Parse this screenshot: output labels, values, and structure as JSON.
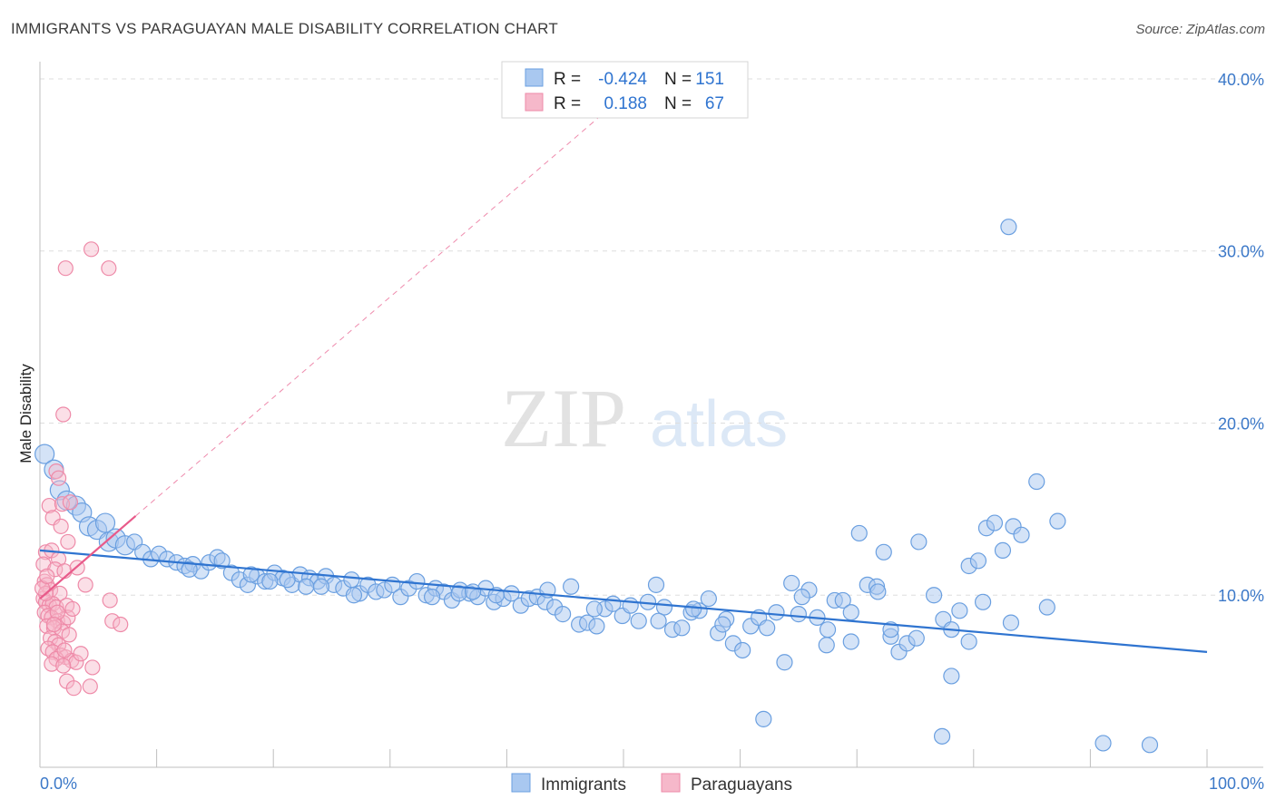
{
  "title": "IMMIGRANTS VS PARAGUAYAN MALE DISABILITY CORRELATION CHART",
  "source": "Source: ZipAtlas.com",
  "watermark": {
    "zip": "ZIP",
    "atlas": "atlas"
  },
  "colors": {
    "immigrants_fill": "#a9c8f0",
    "immigrants_stroke": "#6a9fe0",
    "immigrants_line": "#2f74d0",
    "paraguayans_fill": "#f6b8ca",
    "paraguayans_stroke": "#ee8aa8",
    "paraguayans_line": "#e85a8a",
    "axis_text": "#3b78c8",
    "grid": "#dedede"
  },
  "legend": {
    "rows": [
      {
        "r_label": "R =",
        "r_value": "-0.424",
        "n_label": "N =",
        "n_value": "151"
      },
      {
        "r_label": "R =",
        "r_value": "0.188",
        "n_label": "N =",
        "n_value": "67"
      }
    ]
  },
  "chart_data": {
    "type": "scatter",
    "title": "IMMIGRANTS VS PARAGUAYAN MALE DISABILITY CORRELATION CHART",
    "xlabel": "",
    "ylabel": "Male Disability",
    "xlim": [
      0,
      100
    ],
    "ylim": [
      0,
      41
    ],
    "x_tick_labels": [
      "0.0%",
      "100.0%"
    ],
    "y_ticks": [
      10,
      20,
      30,
      40
    ],
    "y_tick_labels": [
      "10.0%",
      "20.0%",
      "30.0%",
      "40.0%"
    ],
    "grid": true,
    "legend_position": "bottom",
    "series": [
      {
        "name": "Immigrants",
        "stats": {
          "R": -0.424,
          "N": 151
        },
        "trend": {
          "x0": 0,
          "y0": 12.6,
          "x1": 100,
          "y1": 6.7
        },
        "points": [
          [
            0.4,
            18.2
          ],
          [
            1.2,
            17.3
          ],
          [
            1.7,
            16.1
          ],
          [
            2.3,
            15.5
          ],
          [
            3.1,
            15.2
          ],
          [
            3.6,
            14.8
          ],
          [
            4.2,
            14.0
          ],
          [
            4.9,
            13.8
          ],
          [
            5.6,
            14.2
          ],
          [
            5.9,
            13.1
          ],
          [
            6.5,
            13.3
          ],
          [
            7.3,
            12.9
          ],
          [
            8.1,
            13.1
          ],
          [
            8.8,
            12.5
          ],
          [
            9.5,
            12.1
          ],
          [
            10.2,
            12.4
          ],
          [
            10.9,
            12.1
          ],
          [
            11.7,
            11.9
          ],
          [
            12.4,
            11.7
          ],
          [
            13.1,
            11.8
          ],
          [
            13.8,
            11.4
          ],
          [
            14.5,
            11.9
          ],
          [
            15.2,
            12.2
          ],
          [
            15.6,
            12.0
          ],
          [
            16.4,
            11.3
          ],
          [
            17.1,
            10.9
          ],
          [
            17.8,
            10.6
          ],
          [
            18.6,
            11.1
          ],
          [
            19.3,
            10.8
          ],
          [
            20.1,
            11.3
          ],
          [
            20.8,
            11.0
          ],
          [
            21.6,
            10.6
          ],
          [
            22.3,
            11.2
          ],
          [
            23.1,
            11.0
          ],
          [
            23.8,
            10.8
          ],
          [
            24.5,
            11.1
          ],
          [
            25.2,
            10.6
          ],
          [
            26.0,
            10.4
          ],
          [
            26.7,
            10.9
          ],
          [
            27.4,
            10.1
          ],
          [
            28.1,
            10.6
          ],
          [
            28.8,
            10.2
          ],
          [
            29.5,
            10.3
          ],
          [
            30.2,
            10.6
          ],
          [
            30.9,
            9.9
          ],
          [
            31.6,
            10.4
          ],
          [
            32.3,
            10.8
          ],
          [
            33.1,
            10.0
          ],
          [
            33.9,
            10.4
          ],
          [
            34.6,
            10.2
          ],
          [
            35.3,
            9.7
          ],
          [
            36.0,
            10.3
          ],
          [
            36.8,
            10.1
          ],
          [
            37.5,
            9.9
          ],
          [
            38.2,
            10.4
          ],
          [
            38.9,
            9.6
          ],
          [
            39.7,
            9.8
          ],
          [
            40.4,
            10.1
          ],
          [
            41.2,
            9.4
          ],
          [
            41.9,
            9.8
          ],
          [
            42.6,
            9.9
          ],
          [
            43.3,
            9.6
          ],
          [
            44.1,
            9.3
          ],
          [
            44.8,
            8.9
          ],
          [
            45.5,
            10.5
          ],
          [
            46.2,
            8.3
          ],
          [
            46.9,
            8.4
          ],
          [
            47.7,
            8.2
          ],
          [
            48.4,
            9.2
          ],
          [
            49.1,
            9.5
          ],
          [
            49.9,
            8.8
          ],
          [
            50.6,
            9.4
          ],
          [
            51.3,
            8.5
          ],
          [
            52.1,
            9.6
          ],
          [
            52.8,
            10.6
          ],
          [
            53.5,
            9.3
          ],
          [
            54.2,
            8.0
          ],
          [
            55.0,
            8.1
          ],
          [
            55.8,
            9.0
          ],
          [
            56.5,
            9.1
          ],
          [
            57.3,
            9.8
          ],
          [
            58.1,
            7.8
          ],
          [
            58.8,
            8.6
          ],
          [
            59.4,
            7.2
          ],
          [
            60.2,
            6.8
          ],
          [
            60.9,
            8.2
          ],
          [
            61.6,
            8.7
          ],
          [
            62.3,
            8.1
          ],
          [
            63.1,
            9.0
          ],
          [
            63.8,
            6.1
          ],
          [
            64.4,
            10.7
          ],
          [
            65.0,
            8.9
          ],
          [
            65.9,
            10.3
          ],
          [
            66.6,
            8.7
          ],
          [
            67.4,
            7.1
          ],
          [
            68.1,
            9.7
          ],
          [
            68.8,
            9.7
          ],
          [
            69.5,
            9.0
          ],
          [
            70.2,
            13.6
          ],
          [
            70.9,
            10.6
          ],
          [
            71.7,
            10.5
          ],
          [
            72.3,
            12.5
          ],
          [
            72.9,
            7.6
          ],
          [
            73.6,
            6.7
          ],
          [
            74.3,
            7.2
          ],
          [
            75.1,
            7.5
          ],
          [
            72.9,
            8.0
          ],
          [
            76.6,
            10.0
          ],
          [
            77.4,
            8.6
          ],
          [
            78.1,
            8.0
          ],
          [
            78.8,
            9.1
          ],
          [
            79.6,
            11.7
          ],
          [
            80.4,
            12.0
          ],
          [
            81.1,
            13.9
          ],
          [
            81.8,
            14.2
          ],
          [
            82.5,
            12.6
          ],
          [
            80.8,
            9.6
          ],
          [
            79.6,
            7.3
          ],
          [
            78.1,
            5.3
          ],
          [
            75.3,
            13.1
          ],
          [
            83.4,
            14.0
          ],
          [
            84.1,
            13.5
          ],
          [
            85.4,
            16.6
          ],
          [
            87.2,
            14.3
          ],
          [
            86.3,
            9.3
          ],
          [
            83.0,
            31.4
          ],
          [
            62.0,
            2.8
          ],
          [
            83.2,
            8.4
          ],
          [
            91.1,
            1.4
          ],
          [
            95.1,
            1.3
          ],
          [
            77.3,
            1.8
          ],
          [
            69.5,
            7.3
          ],
          [
            43.5,
            10.3
          ],
          [
            47.5,
            9.2
          ],
          [
            53.0,
            8.5
          ],
          [
            65.3,
            9.9
          ],
          [
            67.5,
            8.0
          ],
          [
            56.0,
            9.2
          ],
          [
            58.5,
            8.3
          ],
          [
            71.8,
            10.2
          ],
          [
            33.6,
            9.9
          ],
          [
            35.9,
            10.1
          ],
          [
            37.1,
            10.2
          ],
          [
            39.1,
            10.0
          ],
          [
            24.1,
            10.5
          ],
          [
            26.9,
            10.0
          ],
          [
            21.2,
            10.9
          ],
          [
            22.8,
            10.5
          ],
          [
            19.7,
            10.8
          ],
          [
            18.1,
            11.2
          ],
          [
            12.8,
            11.5
          ]
        ]
      },
      {
        "name": "Paraguayans",
        "stats": {
          "R": 0.188,
          "N": 67
        },
        "trend_solid": {
          "x0": 0,
          "y0": 9.8,
          "x1": 8.2,
          "y1": 14.6
        },
        "trend_dashed": {
          "x0": 8.2,
          "y0": 14.6,
          "x1": 50,
          "y1": 39.0
        },
        "points": [
          [
            4.4,
            30.1
          ],
          [
            2.2,
            29.0
          ],
          [
            5.9,
            29.0
          ],
          [
            2.0,
            20.5
          ],
          [
            1.4,
            17.2
          ],
          [
            1.6,
            16.8
          ],
          [
            0.8,
            15.2
          ],
          [
            1.9,
            15.3
          ],
          [
            2.6,
            15.4
          ],
          [
            1.1,
            14.5
          ],
          [
            1.8,
            14.0
          ],
          [
            2.4,
            13.1
          ],
          [
            0.5,
            12.5
          ],
          [
            1.0,
            12.6
          ],
          [
            1.6,
            12.1
          ],
          [
            0.3,
            11.8
          ],
          [
            1.3,
            11.5
          ],
          [
            2.1,
            11.4
          ],
          [
            3.2,
            11.6
          ],
          [
            0.4,
            10.8
          ],
          [
            0.6,
            10.6
          ],
          [
            0.9,
            10.3
          ],
          [
            1.7,
            10.1
          ],
          [
            3.9,
            10.6
          ],
          [
            0.3,
            9.8
          ],
          [
            0.5,
            9.6
          ],
          [
            0.8,
            9.4
          ],
          [
            1.1,
            9.5
          ],
          [
            1.4,
            9.3
          ],
          [
            2.3,
            9.4
          ],
          [
            6.0,
            9.7
          ],
          [
            0.4,
            9.0
          ],
          [
            0.7,
            8.8
          ],
          [
            1.0,
            8.7
          ],
          [
            1.5,
            8.5
          ],
          [
            2.0,
            8.4
          ],
          [
            2.4,
            8.7
          ],
          [
            0.6,
            8.2
          ],
          [
            1.2,
            8.1
          ],
          [
            1.9,
            7.9
          ],
          [
            2.5,
            7.7
          ],
          [
            6.2,
            8.5
          ],
          [
            6.9,
            8.3
          ],
          [
            0.9,
            7.5
          ],
          [
            1.3,
            7.3
          ],
          [
            1.6,
            7.1
          ],
          [
            0.7,
            6.9
          ],
          [
            1.1,
            6.7
          ],
          [
            1.8,
            6.5
          ],
          [
            2.2,
            6.4
          ],
          [
            1.4,
            6.3
          ],
          [
            2.7,
            6.2
          ],
          [
            3.1,
            6.1
          ],
          [
            1.0,
            6.0
          ],
          [
            2.0,
            5.9
          ],
          [
            4.5,
            5.8
          ],
          [
            2.3,
            5.0
          ],
          [
            2.9,
            4.6
          ],
          [
            4.3,
            4.7
          ],
          [
            0.5,
            10.1
          ],
          [
            0.2,
            10.4
          ],
          [
            1.5,
            9.0
          ],
          [
            2.8,
            9.2
          ],
          [
            0.6,
            11.1
          ],
          [
            1.2,
            8.3
          ],
          [
            2.1,
            6.8
          ],
          [
            3.5,
            6.6
          ]
        ]
      }
    ]
  }
}
